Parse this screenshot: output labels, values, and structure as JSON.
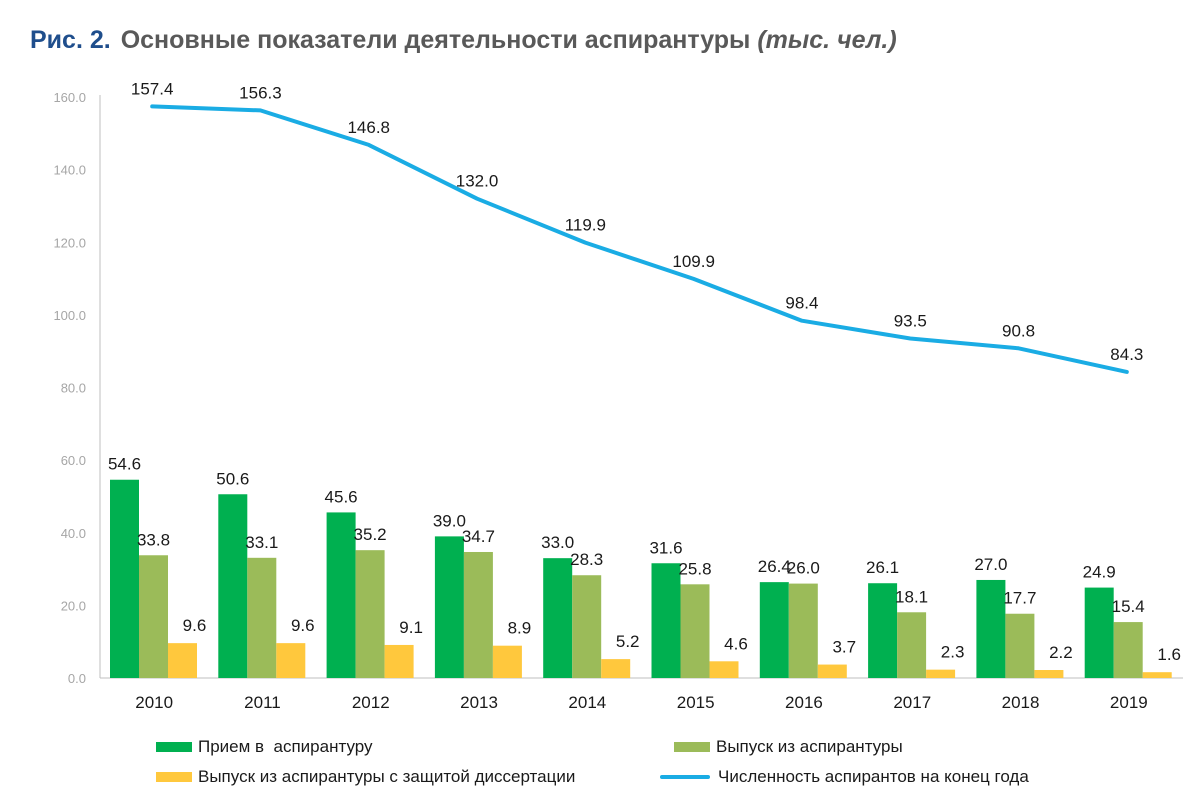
{
  "title": {
    "figure": "Рис. 2.",
    "main": "Основные показатели деятельности аспирантуры",
    "units": "(тыс. чел.)"
  },
  "chart_data": {
    "type": "bar",
    "categories": [
      "2010",
      "2011",
      "2012",
      "2013",
      "2014",
      "2015",
      "2016",
      "2017",
      "2018",
      "2019"
    ],
    "ylim": [
      0,
      160
    ],
    "yticks": [
      "0.0",
      "20.0",
      "40.0",
      "60.0",
      "80.0",
      "100.0",
      "120.0",
      "140.0",
      "160.0"
    ],
    "grid": false,
    "legend_position": "bottom",
    "series": [
      {
        "name": "Прием в  аспирантуру",
        "type": "bar",
        "color": "#00b050",
        "values": [
          54.6,
          50.6,
          45.6,
          39.0,
          33.0,
          31.6,
          26.4,
          26.1,
          27.0,
          24.9
        ],
        "labels": [
          "54.6",
          "50.6",
          "45.6",
          "39.0",
          "33.0",
          "31.6",
          "26.4",
          "26.1",
          "27.0",
          "24.9"
        ]
      },
      {
        "name": "Выпуск из аспирантуры",
        "type": "bar",
        "color": "#9bbb59",
        "values": [
          33.8,
          33.1,
          35.2,
          34.7,
          28.3,
          25.8,
          26.0,
          18.1,
          17.7,
          15.4
        ],
        "labels": [
          "33.8",
          "33.1",
          "35.2",
          "34.7",
          "28.3",
          "25.8",
          "26.0",
          "18.1",
          "17.7",
          "15.4"
        ]
      },
      {
        "name": "Выпуск из аспирантуры с защитой диссертации",
        "type": "bar",
        "color": "#ffc83d",
        "values": [
          9.6,
          9.6,
          9.1,
          8.9,
          5.2,
          4.6,
          3.7,
          2.3,
          2.2,
          1.6
        ],
        "labels": [
          "9.6",
          "9.6",
          "9.1",
          "8.9",
          "5.2",
          "4.6",
          "3.7",
          "2.3",
          "2.2",
          "1.6"
        ]
      },
      {
        "name": "Численность аспирантов на конец года",
        "type": "line",
        "color": "#1aace4",
        "values": [
          157.4,
          156.3,
          146.8,
          132.0,
          119.9,
          109.9,
          98.4,
          93.5,
          90.8,
          84.3
        ],
        "labels": [
          "157.4",
          "156.3",
          "146.8",
          "132.0",
          "119.9",
          "109.9",
          "98.4",
          "93.5",
          "90.8",
          "84.3"
        ]
      }
    ]
  }
}
